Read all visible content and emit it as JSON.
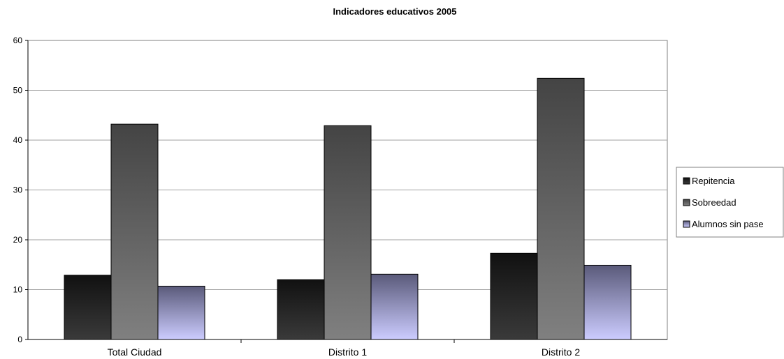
{
  "chart_data": {
    "type": "bar",
    "title": "Indicadores educativos 2005",
    "xlabel": "",
    "ylabel": "",
    "categories": [
      "Total Ciudad",
      "Distrito 1",
      "Distrito 2"
    ],
    "series": [
      {
        "name": "Repitencia",
        "values": [
          12.9,
          12.0,
          17.3
        ]
      },
      {
        "name": "Sobreedad",
        "values": [
          43.2,
          42.9,
          52.4
        ]
      },
      {
        "name": "Alumnos sin pase",
        "values": [
          10.7,
          13.1,
          14.9
        ]
      }
    ],
    "ylim": [
      0,
      60
    ],
    "yticks": [
      0,
      10,
      20,
      30,
      40,
      50,
      60
    ],
    "grid": true,
    "legend_position": "right"
  }
}
